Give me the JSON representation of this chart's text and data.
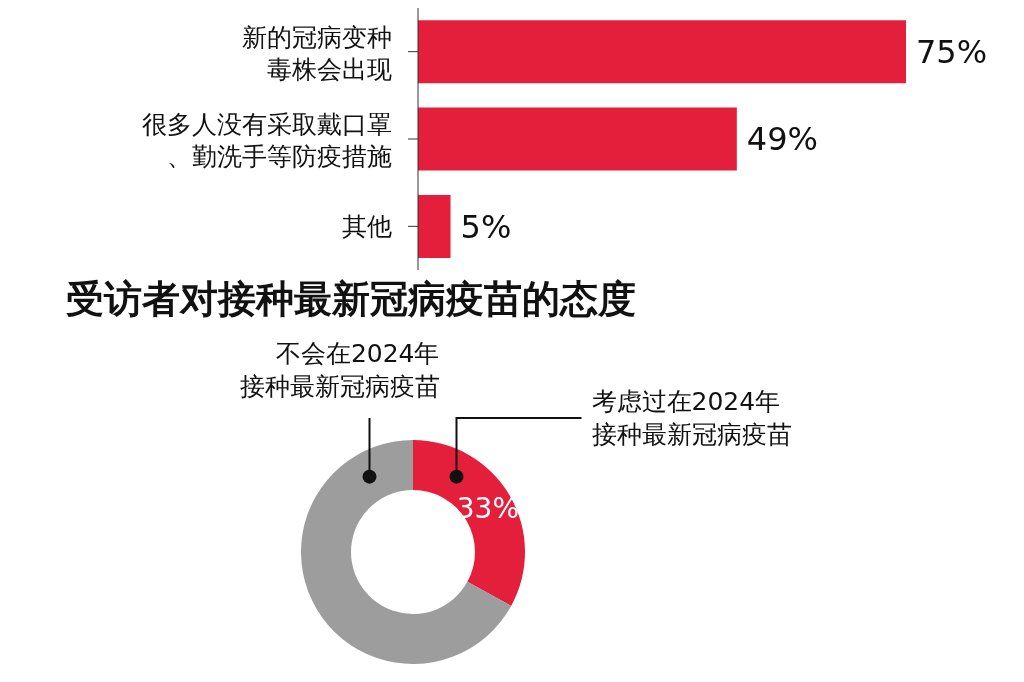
{
  "chart_data": [
    {
      "type": "bar",
      "orientation": "horizontal",
      "categories": [
        "新的冠病变种毒株会出现",
        "很多人没有采取戴口罩、勤洗手等防疫措施",
        "其他"
      ],
      "values": [
        75,
        49,
        5
      ],
      "color": "#e41f3b",
      "data_labels": true,
      "value_labels": [
        "75%",
        "49%",
        "5%"
      ]
    },
    {
      "type": "donut",
      "title": "受访者对接种最新冠病疫苗的态度",
      "categories": [
        "考虑过在2024年接种最新冠病疫苗",
        "不会在2024年接种最新冠病疫苗"
      ],
      "values": [
        33,
        67
      ],
      "colors": [
        "#e41f3b",
        "#9d9d9d"
      ],
      "value_labels": [
        "33%",
        null
      ]
    }
  ]
}
